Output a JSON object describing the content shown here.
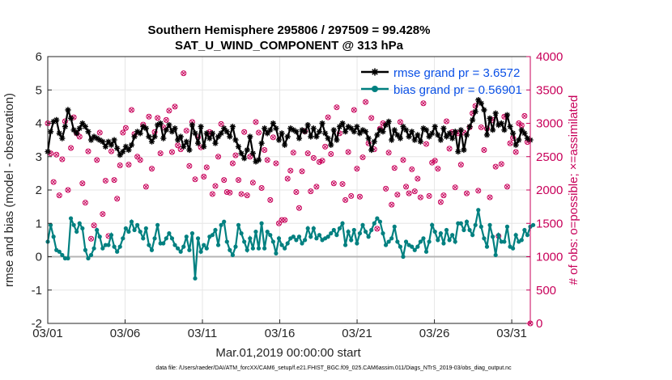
{
  "chart_data": {
    "type": "line",
    "title": "Southern Hemisphere 295806 / 297509 = 99.428%",
    "subtitle": "SAT_U_WIND_COMPONENT @ 313 hPa",
    "xlabel": "Mar.01,2019 00:00:00 start",
    "ylabel": "rmse and bias (model - observation)",
    "y2label": "# of obs: o=possible; ×=assimilated",
    "footnote": "data file: /Users/raeder/DAI/ATM_forcXX/CAM6_setup/f.e21.FHIST_BGC.f09_025.CAM6assim.011/Diags_NTrS_2019-03/obs_diag_output.nc",
    "xlim": [
      0,
      31.2
    ],
    "ylim": [
      -2,
      6
    ],
    "y2lim": [
      0,
      4000
    ],
    "grid": true,
    "xticks": [
      0,
      5,
      10,
      15,
      20,
      25,
      30
    ],
    "xtick_labels": [
      "03/01",
      "03/06",
      "03/11",
      "03/16",
      "03/21",
      "03/26",
      "03/31"
    ],
    "yticks": [
      "-2",
      "-1",
      "0",
      "1",
      "2",
      "3",
      "4",
      "5",
      "6"
    ],
    "y2ticks": [
      "0",
      "500",
      "1000",
      "1500",
      "2000",
      "2500",
      "3000",
      "3500",
      "4000"
    ],
    "legend_position": "top-right",
    "colors": {
      "rmse": "#000000",
      "bias": "#008080",
      "obs": "#c8005a",
      "zero_line": "#b4b4b4"
    },
    "series": [
      {
        "name": "rmse grand pr = 3.6572",
        "axis": "left",
        "values": [
          3.15,
          3.75,
          4.05,
          4.1,
          3.7,
          3.55,
          3.9,
          4.4,
          4.15,
          3.8,
          3.7,
          3.85,
          4.0,
          3.9,
          3.75,
          3.5,
          3.6,
          3.55,
          3.5,
          3.45,
          3.3,
          3.45,
          3.35,
          3.5,
          3.25,
          3.05,
          3.15,
          3.3,
          3.2,
          3.35,
          3.6,
          3.75,
          3.7,
          3.9,
          3.85,
          3.6,
          3.45,
          3.6,
          3.95,
          4.0,
          3.55,
          3.8,
          3.95,
          3.75,
          3.85,
          3.5,
          3.6,
          3.3,
          3.45,
          3.2,
          3.95,
          3.7,
          3.4,
          3.9,
          3.3,
          3.7,
          3.55,
          3.7,
          3.4,
          3.6,
          3.7,
          3.85,
          3.75,
          3.6,
          3.9,
          3.5,
          3.3,
          3.1,
          2.95,
          3.2,
          3.6,
          3.1,
          2.85,
          2.9,
          3.4,
          3.85,
          3.7,
          3.8,
          4.0,
          3.85,
          3.5,
          3.7,
          3.35,
          3.6,
          3.85,
          3.8,
          3.75,
          3.55,
          3.8,
          3.75,
          3.95,
          3.6,
          3.85,
          3.6,
          3.75,
          4.0,
          3.7,
          3.55,
          3.35,
          3.8,
          3.5,
          3.9,
          4.0,
          3.75,
          3.9,
          3.85,
          3.75,
          3.9,
          3.7,
          3.8,
          3.75,
          3.55,
          3.2,
          3.45,
          3.65,
          3.8,
          3.75,
          3.95,
          4.05,
          3.5,
          3.8,
          3.65,
          3.55,
          3.9,
          3.8,
          3.6,
          3.75,
          3.5,
          3.65,
          3.45,
          3.85,
          3.8,
          3.6,
          3.7,
          3.9,
          3.65,
          3.5,
          3.85,
          3.6,
          3.7,
          3.55,
          3.75,
          3.15,
          3.8,
          3.2,
          3.65,
          3.9,
          4.1,
          4.35,
          4.7,
          4.6,
          4.4,
          3.65,
          4.15,
          3.8,
          4.3,
          3.95,
          4.0,
          3.8,
          4.25,
          3.9,
          3.7,
          3.35,
          3.5,
          3.8,
          3.7,
          3.55,
          3.5
        ],
        "markers": "star"
      },
      {
        "name": "bias grand pr = 0.56901",
        "axis": "left",
        "values": [
          0.45,
          0.95,
          0.6,
          0.2,
          0.15,
          0.05,
          -0.05,
          -0.05,
          1.15,
          0.95,
          0.75,
          1.0,
          0.85,
          0.2,
          -0.05,
          0.05,
          0.25,
          0.8,
          0.6,
          0.25,
          0.35,
          0.35,
          0.65,
          0.3,
          0.15,
          0.3,
          0.55,
          0.85,
          0.75,
          1.05,
          0.8,
          0.95,
          0.75,
          0.55,
          0.85,
          0.35,
          0.2,
          0.55,
          0.95,
          0.4,
          0.4,
          0.55,
          0.7,
          0.55,
          0.35,
          0.25,
          0.15,
          0.3,
          0.6,
          0.2,
          0.7,
          -0.65,
          0.55,
          0.15,
          0.35,
          0.25,
          0.6,
          0.65,
          0.8,
          0.35,
          0.95,
          1.05,
          0.45,
          0.2,
          0.05,
          0.3,
          0.95,
          0.7,
          0.45,
          0.2,
          0.55,
          0.25,
          0.75,
          0.25,
          1.0,
          0.25,
          0.75,
          0.65,
          0.45,
          0.1,
          0.55,
          0.35,
          0.25,
          0.4,
          0.55,
          0.6,
          0.5,
          0.6,
          0.4,
          0.5,
          0.85,
          0.6,
          0.85,
          0.55,
          0.65,
          0.5,
          0.55,
          0.6,
          0.7,
          0.8,
          0.65,
          0.85,
          1.0,
          0.35,
          0.75,
          0.5,
          0.8,
          0.4,
          0.7,
          0.95,
          0.75,
          0.6,
          0.8,
          1.0,
          1.15,
          1.05,
          0.7,
          0.35,
          0.45,
          0.55,
          0.9,
          0.45,
          0.3,
          0.0,
          0.45,
          0.35,
          0.3,
          0.2,
          0.3,
          0.45,
          0.55,
          0.15,
          0.45,
          0.95,
          0.75,
          0.5,
          0.7,
          0.4,
          0.8,
          0.5,
          0.65,
          0.45,
          1.0,
          1.0,
          0.8,
          1.05,
          0.8,
          0.65,
          0.95,
          1.4,
          0.9,
          0.55,
          0.3,
          0.95,
          0.6,
          0.05,
          0.65,
          0.45,
          0.45,
          0.9,
          0.3,
          0.25,
          0.65,
          0.45,
          0.5,
          0.8,
          0.65,
          0.9,
          0.95
        ],
        "markers": "circle"
      },
      {
        "name": "possible obs",
        "axis": "right",
        "values": [
          3000,
          2550,
          2120,
          2530,
          1920,
          2460,
          3030,
          2000,
          2630,
          3090,
          2850,
          2800,
          2100,
          1810,
          2580,
          1270,
          1470,
          2450,
          2860,
          1640,
          2140,
          1310,
          2580,
          2150,
          1870,
          2370,
          2860,
          2930,
          2380,
          3200,
          2840,
          2500,
          2450,
          2980,
          2050,
          3100,
          2320,
          2870,
          3080,
          2550,
          2940,
          3050,
          3190,
          2570,
          3250,
          2670,
          2610,
          3750,
          2890,
          2360,
          3020,
          2160,
          2790,
          2640,
          2200,
          2340,
          2870,
          1940,
          2060,
          2500,
          2990,
          2150,
          1970,
          1960,
          2400,
          2520,
          2150,
          1940,
          2870,
          1920,
          2500,
          2110,
          3020,
          2860,
          2030,
          2600,
          2450,
          1850,
          2790,
          2400,
          1500,
          1550,
          1550,
          2170,
          2290,
          2560,
          1970,
          1730,
          2280,
          2880,
          2550,
          1980,
          2480,
          2050,
          2420,
          2440,
          2650,
          3090,
          2540,
          2100,
          3240,
          2850,
          2090,
          1850,
          2570,
          1910,
          3200,
          2320,
          1900,
          2490,
          3320,
          2700,
          3080,
          2610,
          1420,
          2920,
          3000,
          2020,
          2560,
          1780,
          2330,
          1930,
          3020,
          2450,
          2050,
          1950,
          2310,
          1980,
          2170,
          1890,
          3300,
          2690,
          1910,
          2410,
          2440,
          2320,
          1820,
          1920,
          3030,
          2620,
          2870,
          2040,
          2850,
          2380,
          2860,
          1950,
          2940,
          3150,
          3260,
          1990,
          2940,
          2600,
          2920,
          1890,
          3050,
          2350,
          1310,
          2390,
          3100,
          2050,
          2700,
          2780,
          2570,
          3000,
          2970,
          3110,
          2720,
          0
        ],
        "markers": "circle"
      },
      {
        "name": "assimilated obs",
        "axis": "right",
        "values": [
          3000,
          2550,
          2120,
          2530,
          1920,
          2460,
          3030,
          2000,
          2630,
          3090,
          2850,
          2800,
          2100,
          1810,
          2580,
          1270,
          1470,
          2450,
          2860,
          1640,
          2140,
          1310,
          2580,
          2150,
          1870,
          2370,
          2860,
          2930,
          2380,
          3200,
          2840,
          2500,
          2450,
          2980,
          2050,
          3100,
          2320,
          2870,
          3080,
          2550,
          2940,
          3050,
          3190,
          2570,
          3250,
          2670,
          2610,
          3750,
          2890,
          2360,
          3020,
          2160,
          2790,
          2640,
          2200,
          2340,
          2870,
          1940,
          2060,
          2500,
          2990,
          2150,
          1970,
          1960,
          2400,
          2520,
          2150,
          1940,
          2870,
          1920,
          2500,
          2110,
          3020,
          2860,
          2030,
          2600,
          2450,
          1850,
          2790,
          2400,
          1500,
          1550,
          1550,
          2170,
          2290,
          2560,
          1970,
          1730,
          2280,
          2880,
          2550,
          1980,
          2480,
          2050,
          2420,
          2440,
          2650,
          3090,
          2540,
          2100,
          3240,
          2850,
          2090,
          1850,
          2570,
          1910,
          3200,
          2320,
          1900,
          2490,
          3320,
          2700,
          3080,
          2610,
          1420,
          2920,
          3000,
          2020,
          2560,
          1780,
          2330,
          1930,
          3020,
          2450,
          2050,
          1950,
          2310,
          1980,
          2170,
          1890,
          3300,
          2690,
          1910,
          2410,
          2440,
          2320,
          1820,
          1920,
          3030,
          2620,
          2870,
          2040,
          2850,
          2380,
          2860,
          1950,
          2940,
          3150,
          3260,
          1990,
          2940,
          2600,
          2920,
          1890,
          3050,
          2350,
          1310,
          2390,
          3100,
          2050,
          2700,
          2780,
          2570,
          3000,
          2970,
          3110,
          2720,
          0
        ],
        "markers": "x"
      }
    ]
  }
}
